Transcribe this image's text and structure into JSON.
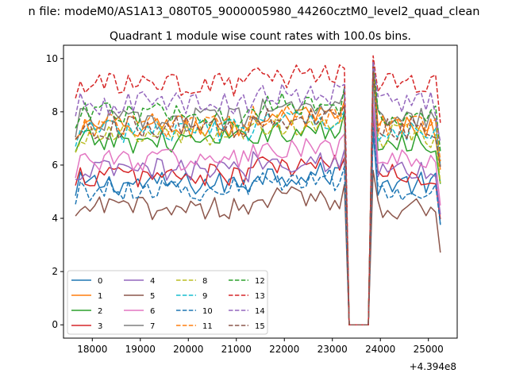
{
  "figure": {
    "suptitle": "n file: modeM0/AS1A13_080T05_9000005980_44260cztM0_level2_quad_clean",
    "title": "Quadrant 1 module wise count rates with 100.0s bins.",
    "offset_label": "+4.394e8"
  },
  "chart_data": {
    "type": "line",
    "title": "Quadrant 1 module wise count rates with 100.0s bins.",
    "xlabel": "",
    "ylabel": "",
    "x_offset": 439400000,
    "xlim": [
      17400,
      25600
    ],
    "ylim": [
      -0.5,
      10.5
    ],
    "xticks": [
      18000,
      19000,
      20000,
      21000,
      22000,
      23000,
      24000,
      25000
    ],
    "yticks": [
      0,
      2,
      4,
      6,
      8,
      10
    ],
    "x_start": 17650,
    "x_step": 100,
    "n_points": 77,
    "gap": {
      "from": 23350,
      "to": 23750,
      "value": 0
    },
    "legend": {
      "placement": "lower-left",
      "columns": 4
    },
    "series": [
      {
        "name": "0",
        "color": "#1f77b4",
        "style": "solid",
        "level": 5.3,
        "peak": 7.3
      },
      {
        "name": "1",
        "color": "#ff7f0e",
        "style": "solid",
        "level": 7.4,
        "peak": 9.9
      },
      {
        "name": "2",
        "color": "#2ca02c",
        "style": "solid",
        "level": 6.9,
        "peak": 9.5
      },
      {
        "name": "3",
        "color": "#d62728",
        "style": "solid",
        "level": 5.6,
        "peak": 7.9
      },
      {
        "name": "4",
        "color": "#9467bd",
        "style": "solid",
        "level": 5.8,
        "peak": 8.2
      },
      {
        "name": "5",
        "color": "#8c564b",
        "style": "solid",
        "level": 4.4,
        "peak": 5.8
      },
      {
        "name": "6",
        "color": "#e377c2",
        "style": "solid",
        "level": 6.2,
        "peak": 8.8
      },
      {
        "name": "7",
        "color": "#7f7f7f",
        "style": "solid",
        "level": 7.7,
        "peak": 9.6
      },
      {
        "name": "8",
        "color": "#bcbd22",
        "style": "dashed",
        "level": 7.1,
        "peak": 9.3
      },
      {
        "name": "9",
        "color": "#17becf",
        "style": "dashed",
        "level": 7.3,
        "peak": 9.4
      },
      {
        "name": "10",
        "color": "#1f77b4",
        "style": "dashed",
        "level": 5.1,
        "peak": 7.4
      },
      {
        "name": "11",
        "color": "#ff7f0e",
        "style": "dashed",
        "level": 7.5,
        "peak": 9.7
      },
      {
        "name": "12",
        "color": "#2ca02c",
        "style": "dashed",
        "level": 7.9,
        "peak": 9.9
      },
      {
        "name": "13",
        "color": "#d62728",
        "style": "dashed",
        "level": 9.0,
        "peak": 10.1
      },
      {
        "name": "14",
        "color": "#9467bd",
        "style": "dashed",
        "level": 8.3,
        "peak": 9.9
      },
      {
        "name": "15",
        "color": "#8c564b",
        "style": "dashed",
        "level": 7.4,
        "peak": 9.5
      }
    ]
  }
}
